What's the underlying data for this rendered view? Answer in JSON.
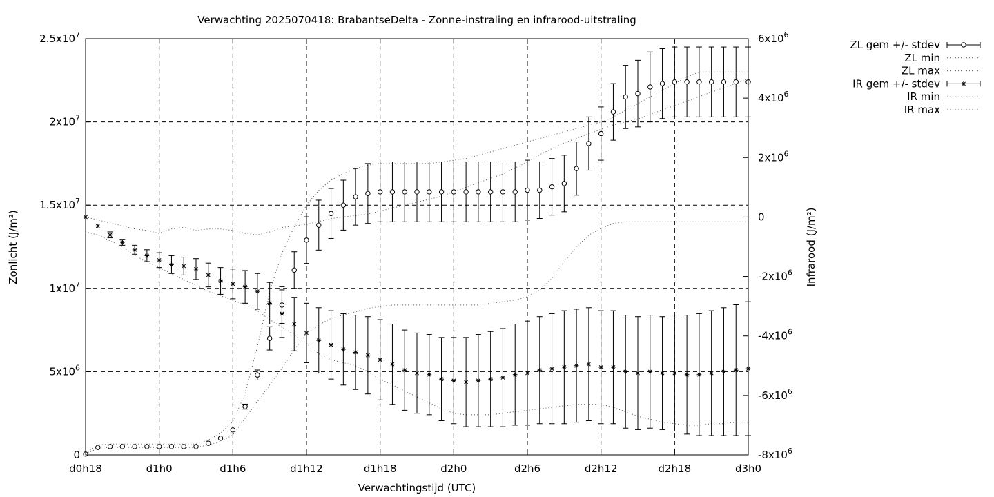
{
  "chart_data": {
    "type": "line",
    "title": "Verwachting 2025070418: BrabantseDelta - Zonne-instraling en infrarood-uitstraling",
    "xlabel": "Verwachtingstijd (UTC)",
    "ylabel": "Zonlicht (J/m²)",
    "y2label": "Infrarood (J/m²)",
    "x_ticks": [
      "d0h18",
      "d1h0",
      "d1h6",
      "d1h12",
      "d1h18",
      "d2h0",
      "d2h6",
      "d2h12",
      "d2h18",
      "d3h0"
    ],
    "y_ticks": [
      {
        "m": "0",
        "e": ""
      },
      {
        "m": "5x10",
        "e": "6"
      },
      {
        "m": "1x10",
        "e": "7"
      },
      {
        "m": "1.5x10",
        "e": "7"
      },
      {
        "m": "2x10",
        "e": "7"
      },
      {
        "m": "2.5x10",
        "e": "7"
      }
    ],
    "y2_ticks": [
      {
        "m": "-8x10",
        "e": "6"
      },
      {
        "m": "-6x10",
        "e": "6"
      },
      {
        "m": "-4x10",
        "e": "6"
      },
      {
        "m": "-2x10",
        "e": "6"
      },
      {
        "m": "0",
        "e": ""
      },
      {
        "m": "2x10",
        "e": "6"
      },
      {
        "m": "4x10",
        "e": "6"
      },
      {
        "m": "6x10",
        "e": "6"
      }
    ],
    "xlim": [
      18,
      72
    ],
    "ylim": [
      0,
      25000000
    ],
    "y2lim": [
      -8000000,
      6000000
    ],
    "grid": true,
    "legend_position": "outside-right",
    "legend": [
      {
        "label": "ZL gem +/- stdev",
        "style": "errorbar-circle"
      },
      {
        "label": "ZL min",
        "style": "dotted"
      },
      {
        "label": "ZL max",
        "style": "dotted"
      },
      {
        "label": "IR gem +/- stdev",
        "style": "errorbar-star"
      },
      {
        "label": "IR min",
        "style": "dotted"
      },
      {
        "label": "IR max",
        "style": "dotted"
      }
    ],
    "x": [
      18,
      19,
      20,
      21,
      22,
      23,
      24,
      25,
      26,
      27,
      28,
      29,
      30,
      31,
      32,
      33,
      34,
      35,
      36,
      37,
      38,
      39,
      40,
      41,
      42,
      43,
      44,
      45,
      46,
      47,
      48,
      49,
      50,
      51,
      52,
      53,
      54,
      55,
      56,
      57,
      58,
      59,
      60,
      61,
      62,
      63,
      64,
      65,
      66,
      67,
      68,
      69,
      70,
      71,
      72
    ],
    "series": [
      {
        "name": "ZL gem +/- stdev",
        "axis": "y1",
        "values": [
          50000,
          450000,
          500000,
          500000,
          500000,
          500000,
          500000,
          500000,
          500000,
          500000,
          700000,
          1000000,
          1500000,
          2900000,
          4800000,
          7000000,
          9000000,
          11100000,
          12900000,
          13800000,
          14500000,
          15000000,
          15500000,
          15700000,
          15800000,
          15800000,
          15800000,
          15800000,
          15800000,
          15800000,
          15800000,
          15800000,
          15800000,
          15800000,
          15800000,
          15800000,
          15900000,
          15900000,
          16100000,
          16300000,
          17200000,
          18700000,
          19300000,
          20600000,
          21500000,
          21700000,
          22100000,
          22300000,
          22400000,
          22400000,
          22400000,
          22400000,
          22400000,
          22400000,
          22400000
        ],
        "stdev": [
          0,
          0,
          0,
          0,
          0,
          0,
          0,
          0,
          0,
          0,
          0,
          0,
          0,
          150000,
          300000,
          700000,
          1100000,
          1100000,
          1400000,
          1500000,
          1500000,
          1500000,
          1700000,
          1800000,
          1800000,
          1800000,
          1800000,
          1800000,
          1800000,
          1800000,
          1800000,
          1800000,
          1800000,
          1800000,
          1800000,
          1800000,
          1800000,
          1700000,
          1700000,
          1700000,
          1600000,
          1600000,
          1600000,
          1700000,
          1900000,
          2000000,
          2100000,
          2100000,
          2100000,
          2100000,
          2100000,
          2100000,
          2100000,
          2100000,
          2100000
        ]
      },
      {
        "name": "ZL min",
        "axis": "y1",
        "values": [
          50000,
          400000,
          450000,
          450000,
          450000,
          450000,
          450000,
          450000,
          450000,
          450000,
          600000,
          800000,
          1200000,
          2200000,
          3200000,
          4200000,
          5200000,
          6300000,
          7300000,
          7800000,
          8200000,
          8400000,
          8600000,
          8800000,
          8900000,
          9000000,
          9000000,
          9000000,
          9000000,
          9000000,
          9000000,
          9000000,
          9000000,
          9100000,
          9200000,
          9300000,
          9500000,
          9900000,
          10600000,
          11600000,
          12500000,
          13200000,
          13600000,
          13900000,
          14000000,
          14000000,
          14000000,
          14000000,
          14000000,
          14000000,
          14000000,
          14000000,
          14000000,
          14000000,
          14000000
        ]
      },
      {
        "name": "ZL max",
        "axis": "y1",
        "values": [
          100000,
          600000,
          650000,
          650000,
          650000,
          650000,
          650000,
          650000,
          650000,
          650000,
          900000,
          1300000,
          2000000,
          3700000,
          6500000,
          9800000,
          12100000,
          13700000,
          15000000,
          15900000,
          16500000,
          16900000,
          17200000,
          17400000,
          17500000,
          17500000,
          17500000,
          17500000,
          17500000,
          17600000,
          17700000,
          17800000,
          18000000,
          18200000,
          18400000,
          18600000,
          18800000,
          19000000,
          19200000,
          19400000,
          19600000,
          19800000,
          20000000,
          20300000,
          20700000,
          21100000,
          21500000,
          21900000,
          22300000,
          22700000,
          23000000,
          23000000,
          23000000,
          23000000,
          23000000
        ]
      },
      {
        "name": "IR gem +/- stdev",
        "axis": "y2",
        "values": [
          0,
          -300000,
          -600000,
          -850000,
          -1100000,
          -1300000,
          -1450000,
          -1600000,
          -1650000,
          -1750000,
          -1950000,
          -2150000,
          -2250000,
          -2350000,
          -2500000,
          -2900000,
          -3250000,
          -3600000,
          -3900000,
          -4150000,
          -4300000,
          -4450000,
          -4550000,
          -4650000,
          -4800000,
          -4950000,
          -5150000,
          -5250000,
          -5300000,
          -5450000,
          -5500000,
          -5550000,
          -5500000,
          -5450000,
          -5400000,
          -5300000,
          -5250000,
          -5150000,
          -5100000,
          -5050000,
          -5000000,
          -4950000,
          -5050000,
          -5050000,
          -5200000,
          -5250000,
          -5200000,
          -5250000,
          -5250000,
          -5300000,
          -5300000,
          -5250000,
          -5200000,
          -5150000,
          -5100000
        ],
        "stdev": [
          0,
          0,
          100000,
          100000,
          150000,
          200000,
          250000,
          300000,
          300000,
          350000,
          400000,
          450000,
          500000,
          550000,
          600000,
          700000,
          800000,
          900000,
          1000000,
          1100000,
          1150000,
          1200000,
          1250000,
          1300000,
          1350000,
          1350000,
          1350000,
          1350000,
          1350000,
          1400000,
          1450000,
          1500000,
          1550000,
          1600000,
          1650000,
          1700000,
          1750000,
          1800000,
          1850000,
          1900000,
          1900000,
          1900000,
          1900000,
          1900000,
          1900000,
          1900000,
          1900000,
          1900000,
          1950000,
          2000000,
          2050000,
          2100000,
          2150000,
          2200000,
          2250000
        ]
      },
      {
        "name": "IR min",
        "axis": "y2",
        "values": [
          -500000,
          -600000,
          -800000,
          -1000000,
          -1300000,
          -1500000,
          -1700000,
          -1900000,
          -2100000,
          -2300000,
          -2500000,
          -2650000,
          -2800000,
          -2950000,
          -3150000,
          -3450000,
          -3700000,
          -3950000,
          -4250000,
          -4600000,
          -4800000,
          -4900000,
          -5000000,
          -5200000,
          -5450000,
          -5650000,
          -5850000,
          -6050000,
          -6250000,
          -6450000,
          -6600000,
          -6650000,
          -6650000,
          -6650000,
          -6600000,
          -6550000,
          -6500000,
          -6450000,
          -6400000,
          -6350000,
          -6300000,
          -6300000,
          -6300000,
          -6400000,
          -6550000,
          -6700000,
          -6800000,
          -6900000,
          -6950000,
          -7000000,
          -7000000,
          -6950000,
          -6950000,
          -6900000,
          -6900000
        ],
        "line_left_y1": [
          0,
          0,
          0,
          0,
          0,
          0,
          0,
          0,
          0,
          0,
          0,
          0,
          0,
          0,
          0,
          0,
          0,
          0,
          0,
          0,
          0,
          0,
          0,
          0,
          0,
          0,
          0,
          0,
          0,
          0,
          0,
          0,
          0,
          0,
          0,
          0,
          0,
          0,
          0,
          0,
          0,
          0,
          0,
          0,
          0,
          0,
          0,
          0,
          0,
          0,
          0,
          0,
          0,
          0,
          0
        ]
      },
      {
        "name": "IR max",
        "axis": "y2",
        "values": [
          0,
          -100000,
          -200000,
          -300000,
          -400000,
          -450000,
          -550000,
          -400000,
          -350000,
          -450000,
          -400000,
          -400000,
          -450000,
          -550000,
          -600000,
          -500000,
          -350000,
          -300000,
          -250000,
          -150000,
          -50000,
          0,
          50000,
          100000,
          200000,
          300000,
          400000,
          500000,
          600000,
          700000,
          850000,
          1000000,
          1150000,
          1300000,
          1450000,
          1650000,
          1850000,
          2100000,
          2300000,
          2500000,
          2650000,
          2800000,
          2950000,
          3100000,
          3200000,
          3300000,
          3450000,
          3600000,
          3750000,
          3900000,
          4050000,
          4200000,
          4350000,
          4500000,
          4650000
        ]
      }
    ]
  }
}
